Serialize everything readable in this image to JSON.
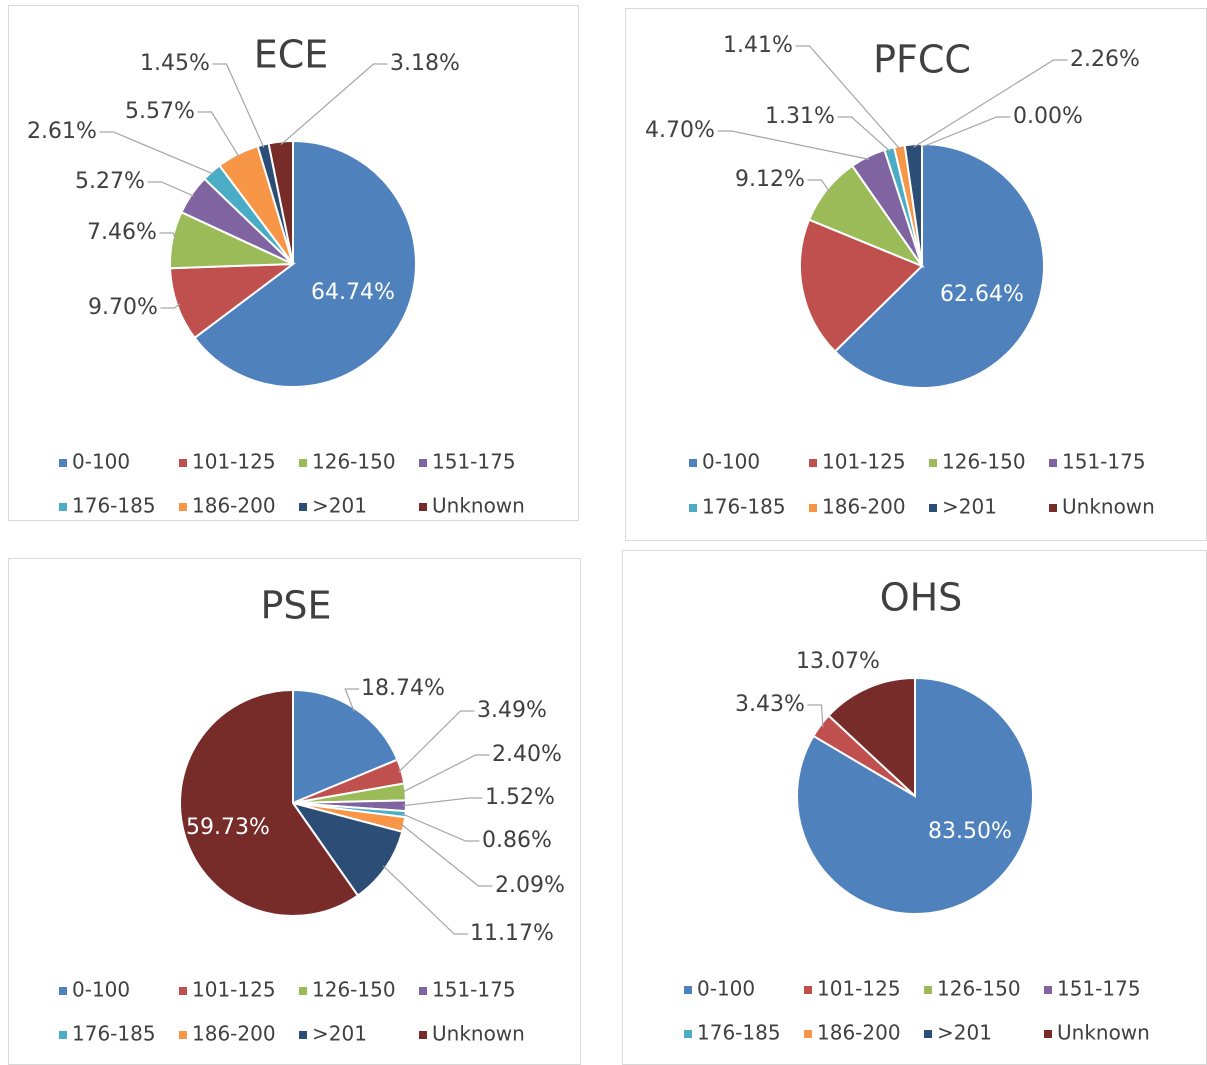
{
  "chart_data": [
    {
      "type": "pie",
      "title": "ECE",
      "categories": [
        "0-100",
        "101-125",
        "126-150",
        "151-175",
        "176-185",
        "186-200",
        ">201",
        "Unknown"
      ],
      "values": [
        64.74,
        9.7,
        7.46,
        5.27,
        2.61,
        5.57,
        1.45,
        3.18
      ],
      "value_labels": [
        "64.74%",
        "9.70%",
        "7.46%",
        "5.27%",
        "2.61%",
        "5.57%",
        "1.45%",
        "3.18%"
      ],
      "colors": [
        "#4f81bd",
        "#c0504d",
        "#9bbb59",
        "#8064a2",
        "#4bacc6",
        "#f79646",
        "#2c4d75",
        "#772c2a"
      ],
      "legend": "bottom"
    },
    {
      "type": "pie",
      "title": "PFCC",
      "categories": [
        "0-100",
        "101-125",
        "126-150",
        "151-175",
        "176-185",
        "186-200",
        ">201",
        "Unknown"
      ],
      "values": [
        62.64,
        18.56,
        9.12,
        4.7,
        1.31,
        1.41,
        2.26,
        0.0
      ],
      "value_labels": [
        "62.64%",
        null,
        "9.12%",
        "4.70%",
        "1.31%",
        "1.41%",
        "2.26%",
        "0.00%"
      ],
      "colors": [
        "#4f81bd",
        "#c0504d",
        "#9bbb59",
        "#8064a2",
        "#4bacc6",
        "#f79646",
        "#2c4d75",
        "#772c2a"
      ],
      "legend": "bottom"
    },
    {
      "type": "pie",
      "title": "PSE",
      "categories": [
        "0-100",
        "101-125",
        "126-150",
        "151-175",
        "176-185",
        "186-200",
        ">201",
        "Unknown"
      ],
      "values": [
        18.74,
        3.49,
        2.4,
        1.52,
        0.86,
        2.09,
        11.17,
        59.73
      ],
      "value_labels": [
        "18.74%",
        "3.49%",
        "2.40%",
        "1.52%",
        "0.86%",
        "2.09%",
        "11.17%",
        "59.73%"
      ],
      "colors": [
        "#4f81bd",
        "#c0504d",
        "#9bbb59",
        "#8064a2",
        "#4bacc6",
        "#f79646",
        "#2c4d75",
        "#772c2a"
      ],
      "legend": "bottom"
    },
    {
      "type": "pie",
      "title": "OHS",
      "categories": [
        "0-100",
        "101-125",
        "126-150",
        "151-175",
        "176-185",
        "186-200",
        ">201",
        "Unknown"
      ],
      "values": [
        83.5,
        3.43,
        0,
        0,
        0,
        0,
        0,
        13.07
      ],
      "value_labels": [
        "83.50%",
        "3.43%",
        null,
        null,
        null,
        null,
        null,
        "13.07%"
      ],
      "colors": [
        "#4f81bd",
        "#c0504d",
        "#9bbb59",
        "#8064a2",
        "#4bacc6",
        "#f79646",
        "#2c4d75",
        "#772c2a"
      ],
      "legend": "bottom"
    }
  ]
}
